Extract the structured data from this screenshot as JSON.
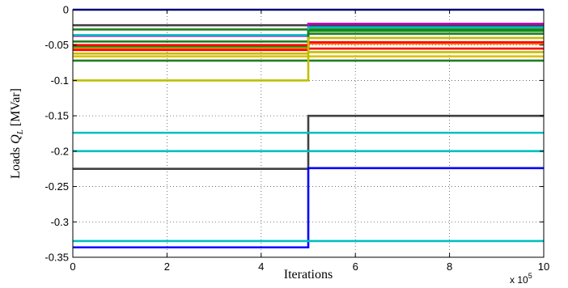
{
  "chart_data": {
    "type": "line",
    "title": "",
    "xlabel": "Iterations",
    "ylabel_prefix": "Loads ",
    "ylabel_var": "Q",
    "ylabel_sub": "L",
    "ylabel_unit": " [MVar]",
    "x_multiplier_base": "x 10",
    "x_multiplier_exp": "5",
    "xlim": [
      0,
      10
    ],
    "ylim": [
      -0.35,
      0
    ],
    "xticks": [
      0,
      2,
      4,
      6,
      8,
      10
    ],
    "xtick_labels": [
      "0",
      "2",
      "4",
      "6",
      "8",
      "10"
    ],
    "yticks": [
      0,
      -0.05,
      -0.1,
      -0.15,
      -0.2,
      -0.25,
      -0.3,
      -0.35
    ],
    "ytick_labels": [
      "0",
      "-0.05",
      "-0.1",
      "-0.15",
      "-0.2",
      "-0.25",
      "-0.3",
      "-0.35"
    ],
    "grid": true,
    "step_x": 5,
    "series": [
      {
        "color": "#0000cc",
        "before": 0,
        "after": 0
      },
      {
        "color": "#404040",
        "before": -0.022,
        "after": -0.022
      },
      {
        "color": "#1f7f1f",
        "before": -0.028,
        "after": -0.028
      },
      {
        "color": "#bf00bf",
        "before": -0.037,
        "after": -0.02
      },
      {
        "color": "#00bfbf",
        "before": -0.036,
        "after": -0.025
      },
      {
        "color": "#0f8f0f",
        "before": -0.052,
        "after": -0.03
      },
      {
        "color": "#1f7f1f",
        "before": -0.045,
        "after": -0.034
      },
      {
        "color": "#ff7f00",
        "before": -0.055,
        "after": -0.048
      },
      {
        "color": "#ff0000",
        "before": -0.057,
        "after": -0.046
      },
      {
        "color": "#ff0000",
        "before": -0.05,
        "after": -0.055
      },
      {
        "color": "#bfbf00",
        "before": -0.062,
        "after": -0.06
      },
      {
        "color": "#e0c000",
        "before": -0.066,
        "after": -0.066
      },
      {
        "color": "#1f7f1f",
        "before": -0.072,
        "after": -0.072
      },
      {
        "color": "#bfbf00",
        "before": -0.1,
        "after": -0.04
      },
      {
        "color": "#404040",
        "before": -0.225,
        "after": -0.15
      },
      {
        "color": "#00bfbf",
        "before": -0.174,
        "after": -0.174
      },
      {
        "color": "#00bfbf",
        "before": -0.2,
        "after": -0.2
      },
      {
        "color": "#0000ff",
        "before": -0.336,
        "after": -0.224
      },
      {
        "color": "#00bfbf",
        "before": -0.327,
        "after": -0.327
      }
    ]
  }
}
